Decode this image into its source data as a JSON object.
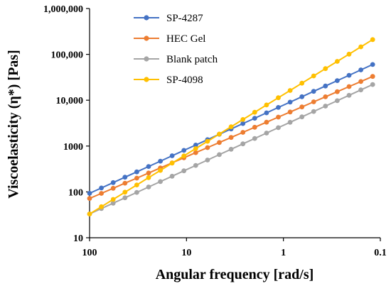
{
  "chart_data": {
    "type": "line",
    "xlabel": "Angular frequency [rad/s]",
    "ylabel": "Viscoelasticity (η*) [Pas]",
    "x_scale": "log",
    "x_reversed": true,
    "y_scale": "log",
    "xlim": [
      100,
      0.1
    ],
    "ylim": [
      10,
      1000000
    ],
    "x_ticks": [
      {
        "value": 100,
        "label": "100"
      },
      {
        "value": 10,
        "label": "10"
      },
      {
        "value": 1,
        "label": "1"
      },
      {
        "value": 0.1,
        "label": "0.1"
      }
    ],
    "y_ticks": [
      {
        "value": 10,
        "label": "10"
      },
      {
        "value": 100,
        "label": "100"
      },
      {
        "value": 1000,
        "label": "1000"
      },
      {
        "value": 10000,
        "label": "10,000"
      },
      {
        "value": 100000,
        "label": "100,000"
      },
      {
        "value": 1000000,
        "label": "1,000,000"
      }
    ],
    "grid": false,
    "legend_position": "top-left",
    "series": [
      {
        "name": "SP-4287",
        "color": "#4472C4",
        "x": [
          100,
          0.12
        ],
        "y": [
          93,
          60000
        ]
      },
      {
        "name": "HEC Gel",
        "color": "#ED7D31",
        "x": [
          100,
          0.12
        ],
        "y": [
          72,
          33000
        ]
      },
      {
        "name": "Blank patch",
        "color": "#A5A5A5",
        "x": [
          100,
          0.12
        ],
        "y": [
          33,
          22000
        ]
      },
      {
        "name": "SP-4098",
        "color": "#FFC000",
        "x": [
          100,
          0.12
        ],
        "y": [
          33,
          210000
        ]
      }
    ]
  }
}
